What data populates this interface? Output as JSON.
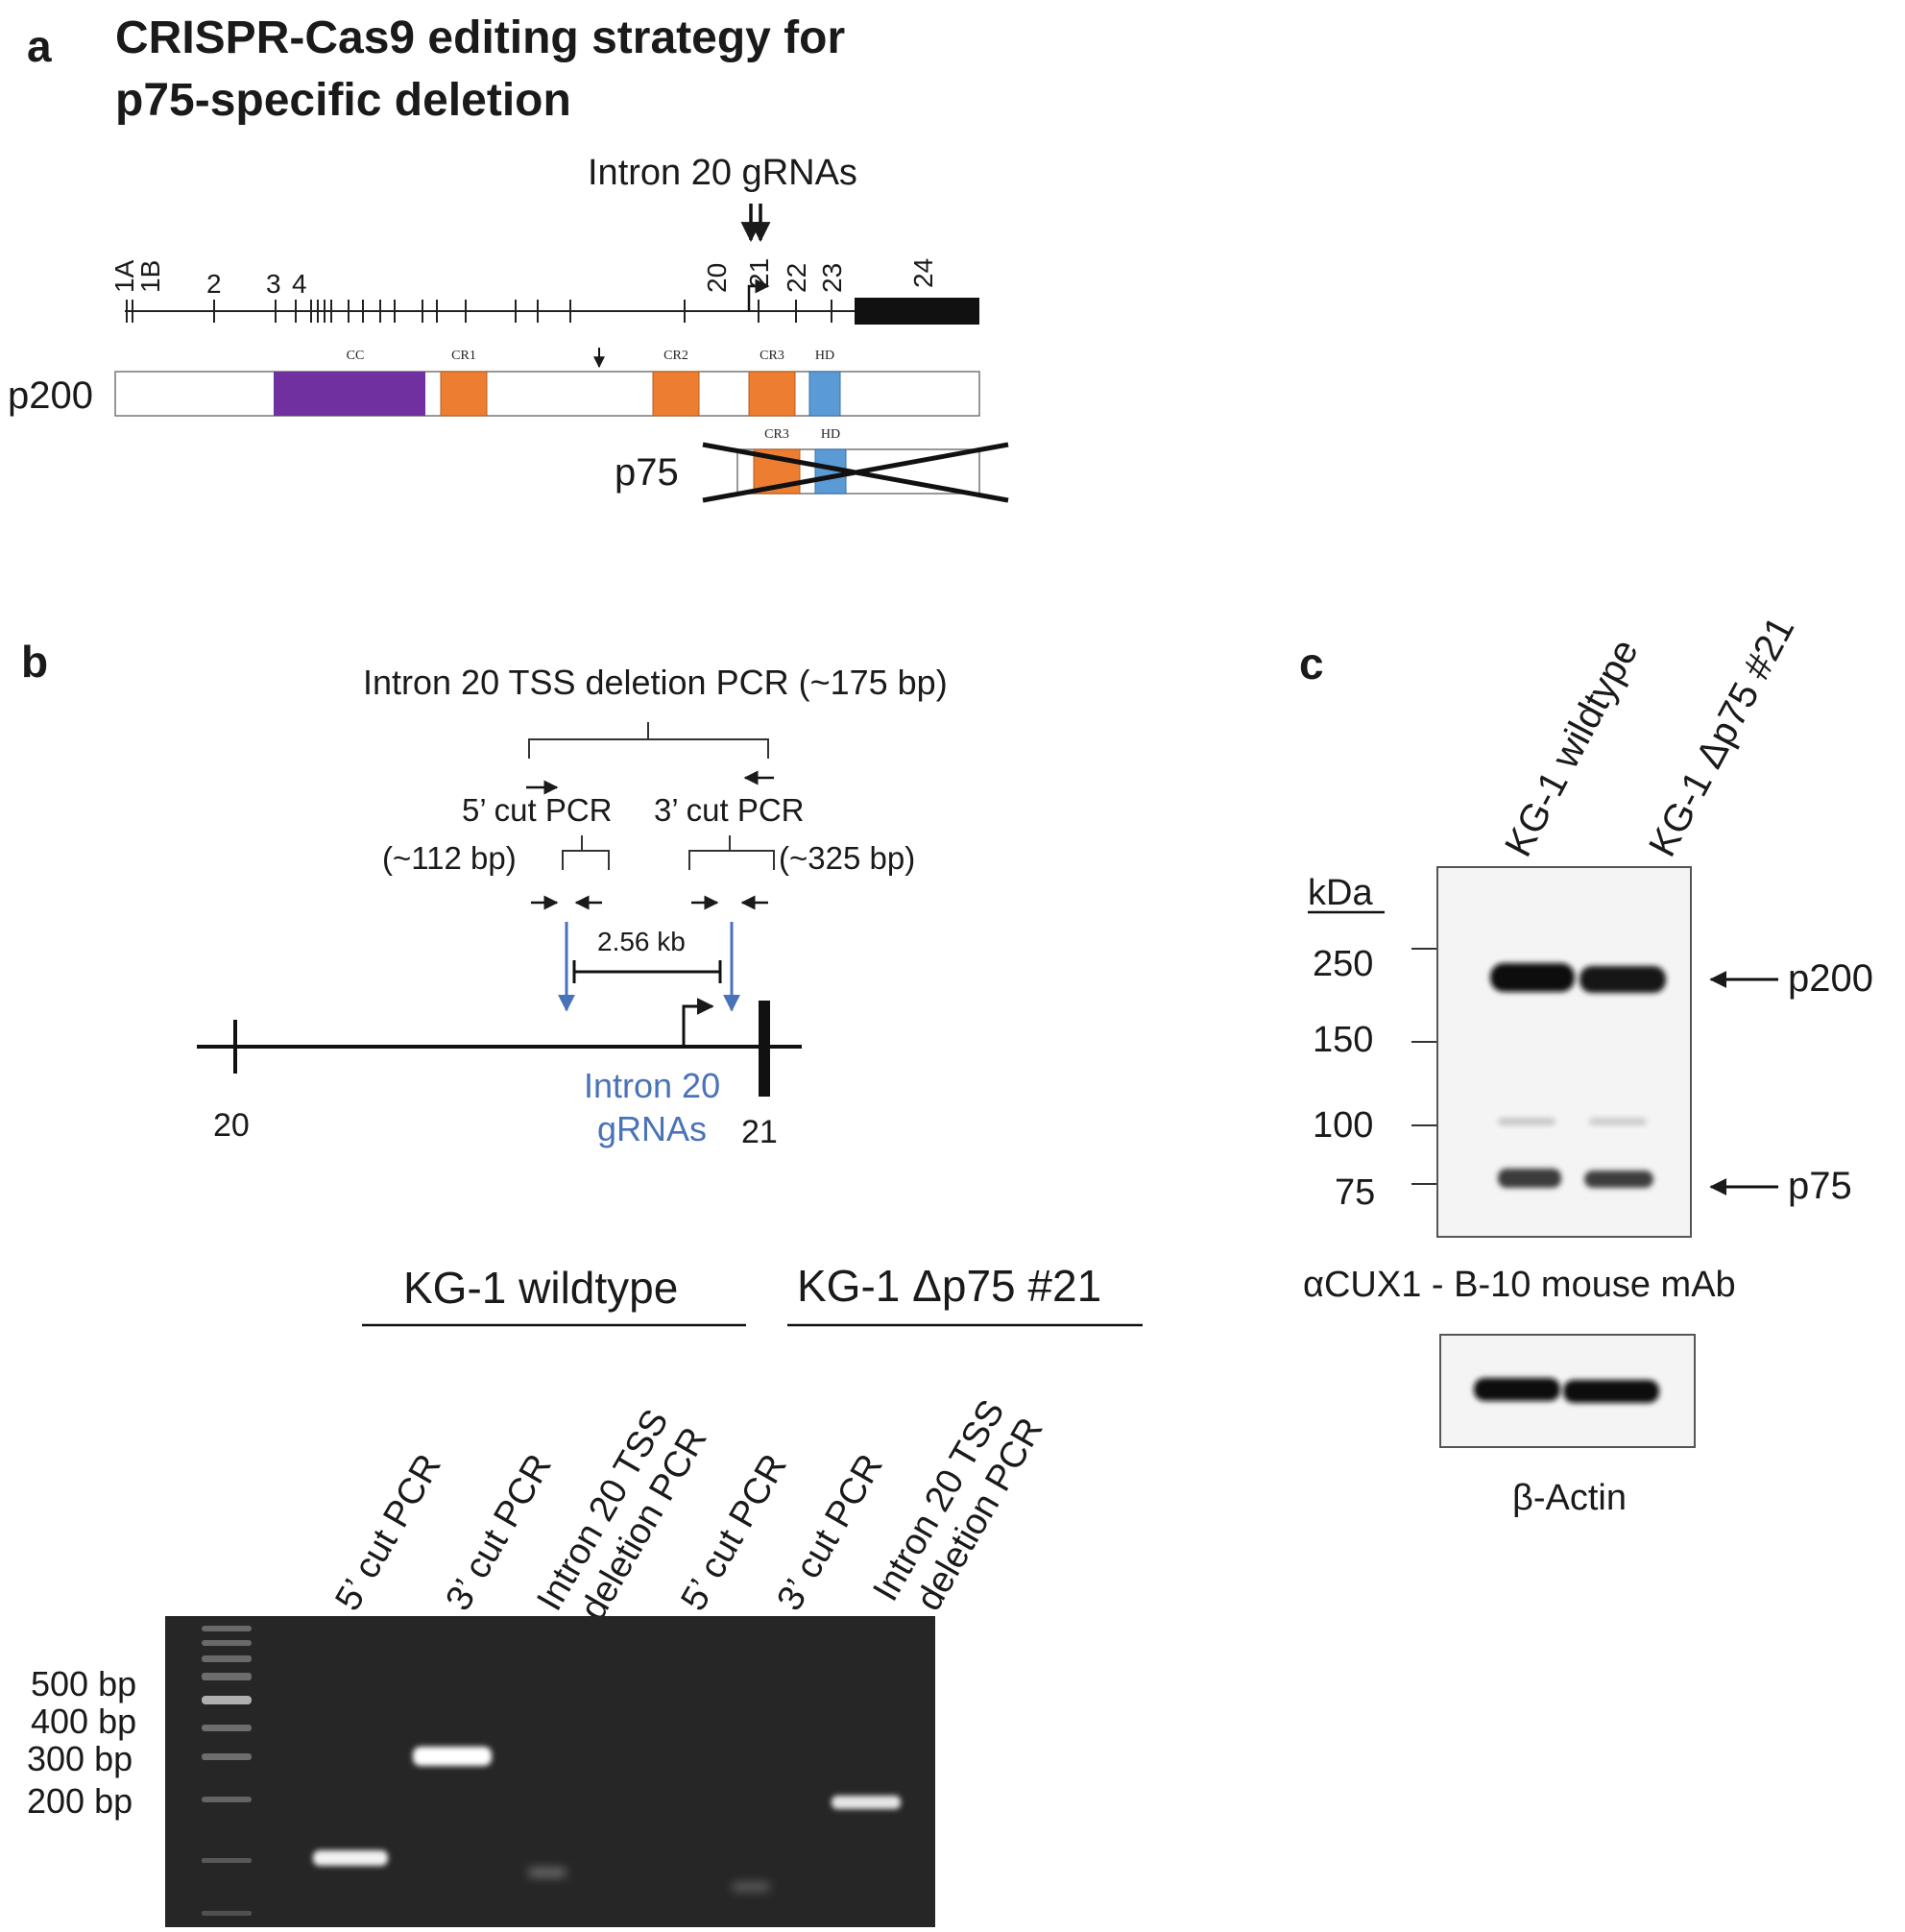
{
  "panel_a": {
    "letter": "a",
    "title_line1": "CRISPR-Cas9 editing strategy for",
    "title_line2": "p75-specific deletion",
    "grna_label": "Intron 20 gRNAs",
    "exon_labels": [
      "1A",
      "1B",
      "2",
      "3",
      "4",
      "20",
      "21",
      "22",
      "23",
      "24"
    ],
    "p200_label": "p200",
    "p75_label": "p75",
    "domains": [
      "CC",
      "CR1",
      "CR2",
      "CR3",
      "HD"
    ],
    "p75_domains": [
      "CR3",
      "HD"
    ],
    "colors": {
      "cc": "#7030a0",
      "cr": "#ed7d31",
      "hd": "#5b9bd5"
    }
  },
  "panel_b": {
    "letter": "b",
    "deletion_pcr_label": "Intron 20 TSS deletion PCR (~175 bp)",
    "cut5_label": "5’ cut PCR",
    "cut3_label": "3’ cut PCR",
    "size5": "(~112 bp)",
    "size3": "(~325 bp)",
    "distance": "2.56 kb",
    "exon20": "20",
    "exon21": "21",
    "grna_line1": "Intron 20",
    "grna_line2": "gRNAs",
    "group1": "KG-1 wildtype",
    "group2": "KG-1 Δp75 #21",
    "lanes": [
      {
        "l1": "5’ cut PCR",
        "l2": ""
      },
      {
        "l1": "3’ cut PCR",
        "l2": ""
      },
      {
        "l1": "Intron 20 TSS",
        "l2": "deletion PCR"
      },
      {
        "l1": "5’ cut PCR",
        "l2": ""
      },
      {
        "l1": "3’ cut PCR",
        "l2": ""
      },
      {
        "l1": "Intron 20 TSS",
        "l2": "deletion PCR"
      }
    ],
    "ladder_labels": [
      "500 bp",
      "400 bp",
      "300 bp",
      "200 bp"
    ]
  },
  "panel_c": {
    "letter": "c",
    "lane1": "KG-1 wildtype",
    "lane2": "KG-1 Δp75 #21",
    "kda_label": "kDa",
    "markers": [
      "250",
      "150",
      "100",
      "75"
    ],
    "p200_label": "p200",
    "p75_label": "p75",
    "antibody_label": "αCUX1 - B-10 mouse mAb",
    "actin_label": "β-Actin"
  }
}
